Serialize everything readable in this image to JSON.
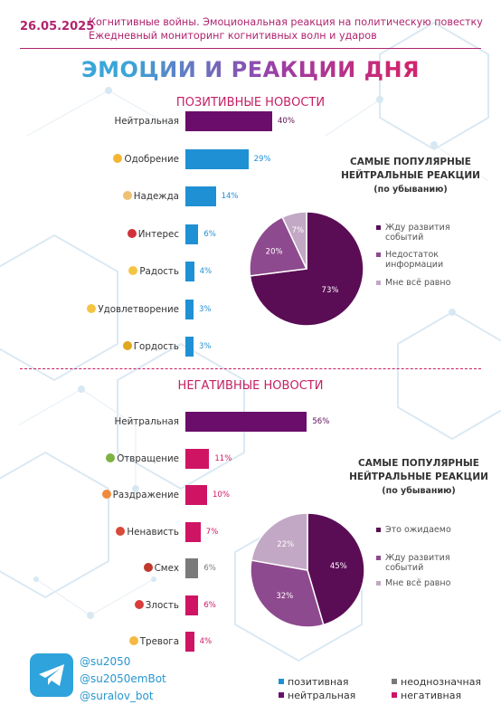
{
  "header": {
    "date": "26.05.2025",
    "line1": "Когнитивные войны. Эмоциональная реакция на политическую повестку",
    "line2": "Ежедневный мониторинг когнитивных волн и ударов"
  },
  "title": "ЭМОЦИИ И РЕАКЦИИ ДНЯ",
  "colors": {
    "positive": "#1f90d4",
    "neutral": "#6b0e6b",
    "negative": "#cf1464",
    "ambiguous": "#7a7a7a",
    "pie_dark": "#5a0d55",
    "pie_mid": "#8e4a8e",
    "pie_light": "#c2a8c4"
  },
  "chart_data": [
    {
      "type": "bar",
      "title": "ПОЗИТИВНЫЕ НОВОСТИ",
      "categories": [
        "Нейтральная",
        "Одобрение",
        "Надежда",
        "Интерес",
        "Радость",
        "Удовлетворение",
        "Гордость"
      ],
      "values": [
        40,
        29,
        14,
        6,
        4,
        3,
        3
      ],
      "value_labels": [
        "40%",
        "29%",
        "14%",
        "6%",
        "4%",
        "3%",
        "3%"
      ],
      "bar_kinds": [
        "neutral",
        "positive",
        "positive",
        "positive",
        "positive",
        "positive",
        "positive"
      ],
      "icons": [
        null,
        "yellow-heart-icon",
        "praying-hands-icon",
        "question-mark-icon",
        "grinning-face-icon",
        "smiling-face-icon",
        "trophy-icon"
      ]
    },
    {
      "type": "pie",
      "title": "САМЫЕ ПОПУЛЯРНЫЕ НЕЙТРАЛЬНЫЕ РЕАКЦИИ",
      "subtitle": "(по убыванию)",
      "labels": [
        "Жду развития событий",
        "Недостаток информации",
        "Мне всё равно"
      ],
      "values": [
        73,
        20,
        7
      ],
      "value_labels": [
        "73%",
        "20%",
        "7%"
      ]
    },
    {
      "type": "bar",
      "title": "НЕГАТИВНЫЕ НОВОСТИ",
      "categories": [
        "Нейтральная",
        "Отвращение",
        "Раздражение",
        "Ненависть",
        "Смех",
        "Злость",
        "Тревога"
      ],
      "values": [
        56,
        11,
        10,
        7,
        6,
        6,
        4
      ],
      "value_labels": [
        "56%",
        "11%",
        "10%",
        "7%",
        "6%",
        "6%",
        "4%"
      ],
      "bar_kinds": [
        "neutral",
        "negative",
        "negative",
        "negative",
        "ambiguous",
        "negative",
        "negative"
      ],
      "icons": [
        null,
        "nauseated-face-icon",
        "angry-face-icon",
        "rage-face-icon",
        "devil-face-icon",
        "pouting-face-icon",
        "anxious-face-icon"
      ]
    },
    {
      "type": "pie",
      "title": "САМЫЕ ПОПУЛЯРНЫЕ НЕЙТРАЛЬНЫЕ РЕАКЦИИ",
      "subtitle": "(по убыванию)",
      "labels": [
        "Это ожидаемо",
        "Жду развития событий",
        "Мне всё равно"
      ],
      "values": [
        45,
        32,
        22
      ],
      "value_labels": [
        "45%",
        "32%",
        "22%"
      ]
    }
  ],
  "footer": {
    "handles": [
      "@su2050",
      "@su2050emBot",
      "@suralov_bot"
    ],
    "legend": {
      "positive": "позитивная",
      "neutral": "нейтральная",
      "ambiguous": "неоднозначная",
      "negative": "негативная"
    }
  }
}
